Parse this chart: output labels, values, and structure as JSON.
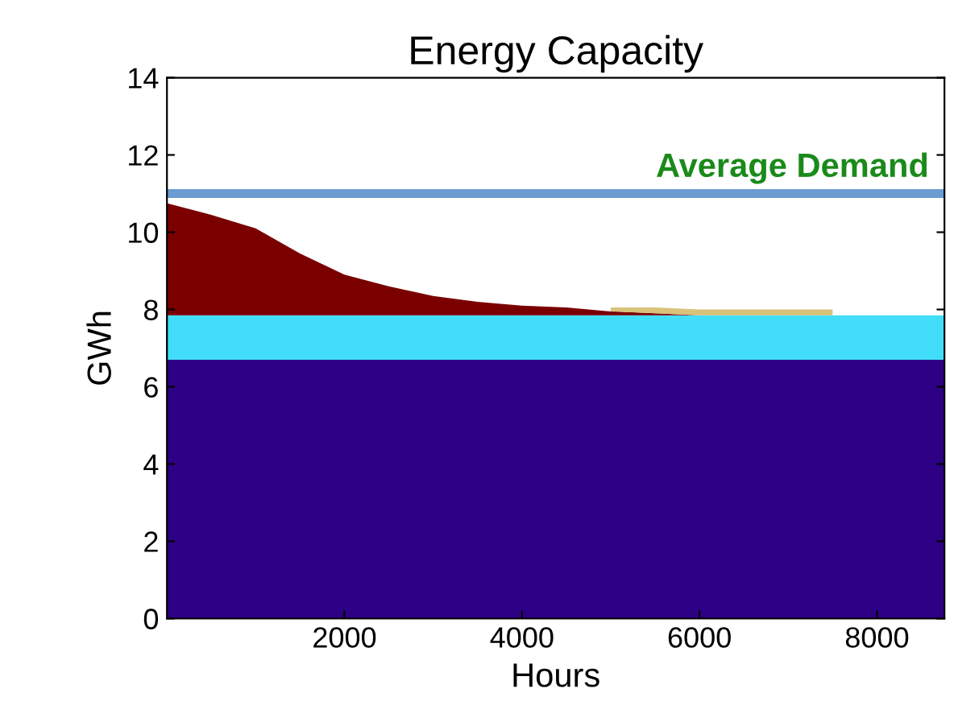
{
  "chart_data": {
    "type": "area",
    "stacked": true,
    "title": "Energy Capacity",
    "xlabel": "Hours",
    "ylabel": "GWh",
    "x": [
      0,
      500,
      1000,
      1500,
      2000,
      2500,
      3000,
      3500,
      4000,
      4500,
      5000,
      5500,
      6000,
      6500,
      7000,
      7500,
      8000,
      8760
    ],
    "series": [
      {
        "color": "#2e0085",
        "values": [
          6.7,
          6.7,
          6.7,
          6.7,
          6.7,
          6.7,
          6.7,
          6.7,
          6.7,
          6.7,
          6.7,
          6.7,
          6.7,
          6.7,
          6.7,
          6.7,
          6.7,
          6.7
        ]
      },
      {
        "color": "#42def9",
        "values": [
          1.15,
          1.15,
          1.15,
          1.15,
          1.15,
          1.15,
          1.15,
          1.15,
          1.15,
          1.15,
          1.15,
          1.15,
          1.15,
          1.15,
          1.15,
          1.15,
          1.15,
          1.15
        ]
      },
      {
        "color": "#7a0000",
        "values": [
          2.9,
          2.6,
          2.25,
          1.6,
          1.05,
          0.75,
          0.5,
          0.35,
          0.25,
          0.2,
          0.1,
          0.05,
          0,
          0,
          0,
          0,
          0,
          0
        ]
      },
      {
        "color": "#d9c27a",
        "values": [
          null,
          null,
          null,
          null,
          null,
          null,
          null,
          null,
          null,
          null,
          0.1,
          0.15,
          0.15,
          0.15,
          0.15,
          0.15,
          null,
          null
        ]
      }
    ],
    "xlim": [
      0,
      8760
    ],
    "ylim": [
      0,
      14
    ],
    "xticks": [
      2000,
      4000,
      6000,
      8000
    ],
    "yticks": [
      0,
      2,
      4,
      6,
      8,
      10,
      12,
      14
    ],
    "grid": false,
    "ref_lines": [
      {
        "axis": "y",
        "value": 11,
        "label": "Average Demand",
        "color": "#6a9bd1"
      }
    ]
  }
}
